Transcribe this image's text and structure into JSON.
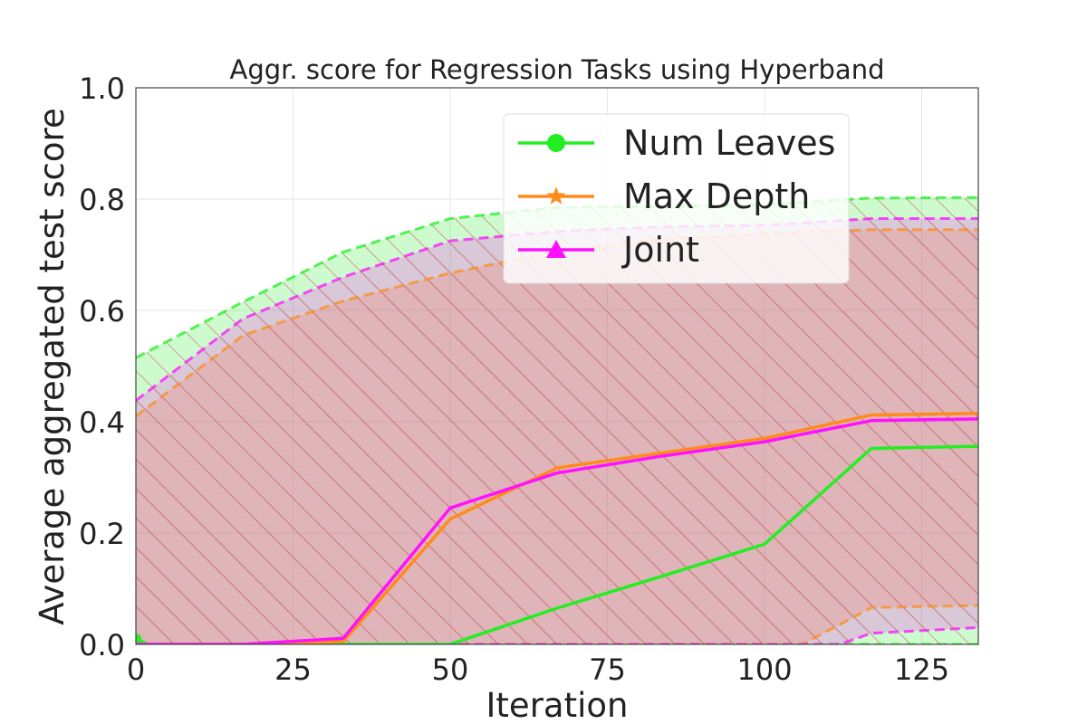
{
  "chart_data": {
    "type": "line",
    "title": "Aggr. score for Regression Tasks using Hyperband",
    "xlabel": "Iteration",
    "ylabel": "Average aggregated test score",
    "xlim": [
      0,
      134
    ],
    "ylim": [
      0,
      1.0
    ],
    "xticks": [
      0,
      25,
      50,
      75,
      100,
      125
    ],
    "yticks": [
      0.0,
      0.2,
      0.4,
      0.6,
      0.8,
      1.0
    ],
    "xtick_labels": [
      "0",
      "25",
      "50",
      "75",
      "100",
      "125"
    ],
    "ytick_labels": [
      "0.0",
      "0.2",
      "0.4",
      "0.6",
      "0.8",
      "1.0"
    ],
    "grid": true,
    "legend_position": "top-right",
    "series": [
      {
        "name": "Num Leaves",
        "color": "#22ee22",
        "marker": "circle",
        "mean": [
          [
            0,
            0.01
          ],
          [
            2,
            0
          ],
          [
            17,
            0
          ],
          [
            33,
            0
          ],
          [
            50,
            0
          ],
          [
            67,
            0.065
          ],
          [
            83,
            0.12
          ],
          [
            100,
            0.18
          ],
          [
            117,
            0.352
          ],
          [
            134,
            0.356
          ]
        ],
        "upper": [
          [
            0,
            0.515
          ],
          [
            17,
            0.615
          ],
          [
            33,
            0.705
          ],
          [
            50,
            0.765
          ],
          [
            67,
            0.785
          ],
          [
            83,
            0.787
          ],
          [
            100,
            0.79
          ],
          [
            117,
            0.802
          ],
          [
            134,
            0.803
          ]
        ],
        "lower": [
          [
            0,
            0
          ],
          [
            134,
            0
          ]
        ]
      },
      {
        "name": "Max Depth",
        "color": "#ff8c1a",
        "marker": "star",
        "mean": [
          [
            0,
            0
          ],
          [
            17,
            0
          ],
          [
            33,
            0.005
          ],
          [
            50,
            0.225
          ],
          [
            67,
            0.317
          ],
          [
            83,
            0.343
          ],
          [
            100,
            0.37
          ],
          [
            117,
            0.412
          ],
          [
            134,
            0.415
          ]
        ],
        "upper": [
          [
            0,
            0.41
          ],
          [
            17,
            0.555
          ],
          [
            33,
            0.617
          ],
          [
            50,
            0.667
          ],
          [
            67,
            0.707
          ],
          [
            83,
            0.727
          ],
          [
            100,
            0.737
          ],
          [
            117,
            0.745
          ],
          [
            134,
            0.745
          ]
        ],
        "lower": [
          [
            0,
            0
          ],
          [
            100,
            0
          ],
          [
            106,
            0
          ],
          [
            117,
            0.066
          ],
          [
            134,
            0.07
          ]
        ]
      },
      {
        "name": "Joint",
        "color": "#ff11ff",
        "marker": "triangle",
        "mean": [
          [
            0,
            0
          ],
          [
            17,
            0
          ],
          [
            33,
            0.011
          ],
          [
            50,
            0.245
          ],
          [
            67,
            0.308
          ],
          [
            83,
            0.337
          ],
          [
            100,
            0.364
          ],
          [
            117,
            0.402
          ],
          [
            134,
            0.405
          ]
        ],
        "upper": [
          [
            0,
            0.438
          ],
          [
            17,
            0.585
          ],
          [
            33,
            0.66
          ],
          [
            50,
            0.725
          ],
          [
            67,
            0.742
          ],
          [
            83,
            0.75
          ],
          [
            100,
            0.753
          ],
          [
            117,
            0.765
          ],
          [
            134,
            0.765
          ]
        ],
        "lower": [
          [
            0,
            0
          ],
          [
            112,
            0
          ],
          [
            117,
            0.02
          ],
          [
            134,
            0.03
          ]
        ]
      }
    ]
  }
}
